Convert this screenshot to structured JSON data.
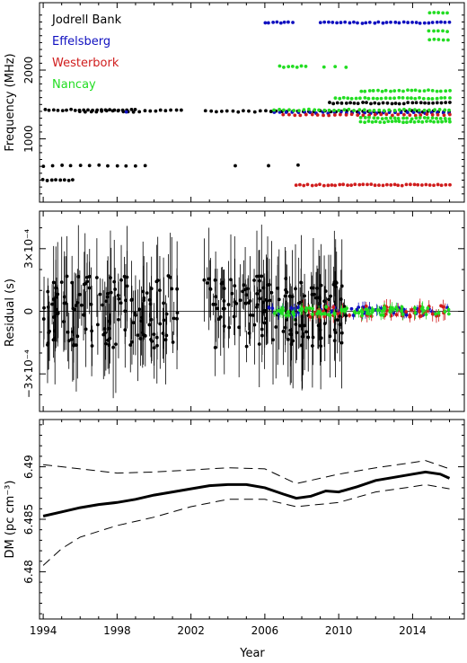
{
  "chart_data": [
    {
      "type": "scatter",
      "ylabel": "Frequency (MHz)",
      "xlim": [
        1993.8,
        2016.8
      ],
      "ylim": [
        80,
        2980
      ],
      "yticks": [
        1000,
        2000
      ],
      "x_ticklabels_shown": false,
      "legend_position": "top-left",
      "series": [
        {
          "name": "Jodrell Bank",
          "color": "#000000",
          "segments": [
            {
              "x": [
                1994.0,
                1995.6
              ],
              "y": 400,
              "n": 8
            },
            {
              "x": [
                1994.0,
                1999.5
              ],
              "y": 610,
              "n": 12
            },
            {
              "x": [
                1994.1,
                1999.0
              ],
              "y": 1420,
              "n": 22
            },
            {
              "x": [
                1996.0,
                1999.2
              ],
              "y": 1400,
              "n": 12
            },
            {
              "x": [
                1999.5,
                2001.5
              ],
              "y": 1410,
              "n": 8
            },
            {
              "x": [
                2002.8,
                2016.0
              ],
              "y": 1400,
              "n": 46
            },
            {
              "x": [
                2009.5,
                2016.0
              ],
              "y": 1520,
              "n": 30
            },
            {
              "x": [
                2004.4,
                2004.4
              ],
              "y": 610,
              "n": 1
            },
            {
              "x": [
                2006.2,
                2006.2
              ],
              "y": 610,
              "n": 1
            },
            {
              "x": [
                2007.8,
                2007.8
              ],
              "y": 610,
              "n": 1
            }
          ]
        },
        {
          "name": "Effelsberg",
          "color": "#1010c0",
          "segments": [
            {
              "x": [
                2006.0,
                2007.5
              ],
              "y": 2690,
              "n": 8
            },
            {
              "x": [
                2009.0,
                2016.0
              ],
              "y": 2690,
              "n": 32
            },
            {
              "x": [
                2006.5,
                2016.0
              ],
              "y": 1380,
              "n": 30
            },
            {
              "x": [
                1998.5,
                1998.5
              ],
              "y": 1400,
              "n": 1
            }
          ]
        },
        {
          "name": "Westerbork",
          "color": "#d01c1c",
          "segments": [
            {
              "x": [
                2007.7,
                2016.0
              ],
              "y": 330,
              "n": 40
            },
            {
              "x": [
                2007.0,
                2016.0
              ],
              "y": 1350,
              "n": 30
            }
          ]
        },
        {
          "name": "Nancay",
          "color": "#22dd22",
          "segments": [
            {
              "x": [
                2006.8,
                2008.2
              ],
              "y": 2050,
              "n": 7
            },
            {
              "x": [
                2009.2,
                2010.4
              ],
              "y": 2050,
              "n": 3
            },
            {
              "x": [
                2009.8,
                2016.0
              ],
              "y": 1590,
              "n": 28
            },
            {
              "x": [
                2011.2,
                2016.0
              ],
              "y": 1700,
              "n": 22
            },
            {
              "x": [
                2011.2,
                2016.0
              ],
              "y": 1250,
              "n": 24
            },
            {
              "x": [
                2011.2,
                2016.0
              ],
              "y": 1300,
              "n": 22
            },
            {
              "x": [
                2006.5,
                2016.0
              ],
              "y": 1420,
              "n": 36
            },
            {
              "x": [
                2014.9,
                2015.9
              ],
              "y": 2830,
              "n": 5
            },
            {
              "x": [
                2014.9,
                2015.9
              ],
              "y": 2570,
              "n": 5
            },
            {
              "x": [
                2014.9,
                2015.9
              ],
              "y": 2440,
              "n": 5
            }
          ]
        }
      ]
    },
    {
      "type": "scatter",
      "ylabel": "Residual (s)",
      "xlim": [
        1993.8,
        2016.8
      ],
      "ylim": [
        -0.00048,
        0.00048
      ],
      "ytick_labels": [
        "3×10⁻⁴",
        "0",
        "−3×10⁻⁴"
      ],
      "yticks": [
        0.0003,
        0,
        -0.0003
      ],
      "x_ticklabels_shown": false,
      "error_bars": true,
      "series": [
        {
          "name": "Jodrell Bank",
          "color": "#000000",
          "x_range": [
            1994.0,
            2010.5
          ],
          "scatter_amplitude": 0.00025,
          "n": 320,
          "gaps": [
            [
              2001.3,
              2002.7
            ]
          ]
        },
        {
          "name": "Effelsberg",
          "color": "#1010c0",
          "x_range": [
            2006.0,
            2016.0
          ],
          "scatter_amplitude": 3e-05,
          "n": 60
        },
        {
          "name": "Westerbork",
          "color": "#d01c1c",
          "x_range": [
            2007.7,
            2016.0
          ],
          "scatter_amplitude": 4e-05,
          "n": 60
        },
        {
          "name": "Nancay",
          "color": "#22dd22",
          "x_range": [
            2006.5,
            2016.0
          ],
          "scatter_amplitude": 3e-05,
          "n": 80
        }
      ]
    },
    {
      "type": "line",
      "ylabel": "DM (pc cm⁻³)",
      "xlabel": "Year",
      "xlim": [
        1993.8,
        2016.8
      ],
      "ylim": [
        6.4755,
        6.4945
      ],
      "yticks": [
        6.48,
        6.485,
        6.49
      ],
      "ytick_labels": [
        "6.48",
        "6.485",
        "6.49"
      ],
      "xticks": [
        1994,
        1998,
        2002,
        2006,
        2010,
        2014
      ],
      "xtick_labels": [
        "1994",
        "1998",
        "2002",
        "2006",
        "2010",
        "2014"
      ],
      "series": [
        {
          "name": "",
          "style": "thick-solid",
          "x": [
            1994.0,
            1995.0,
            1996.0,
            1997.0,
            1998.0,
            1999.0,
            2000.0,
            2001.0,
            2002.0,
            2003.0,
            2004.0,
            2005.0,
            2006.0,
            2007.0,
            2007.7,
            2008.5,
            2009.3,
            2010.0,
            2011.0,
            2012.0,
            2013.0,
            2014.0,
            2014.7,
            2015.5,
            2016.0
          ],
          "y": [
            6.4853,
            6.4857,
            6.4861,
            6.4864,
            6.4866,
            6.4869,
            6.4873,
            6.4876,
            6.4879,
            6.4882,
            6.4883,
            6.4883,
            6.488,
            6.4874,
            6.487,
            6.4872,
            6.4877,
            6.4876,
            6.4881,
            6.4887,
            6.489,
            6.4893,
            6.4895,
            6.4893,
            6.4889
          ]
        },
        {
          "name": "",
          "style": "dashed",
          "x": [
            1994.0,
            1996.0,
            1998.0,
            2000.0,
            2002.0,
            2004.0,
            2006.0,
            2007.7,
            2010.0,
            2012.0,
            2014.0,
            2014.7,
            2016.0
          ],
          "y": [
            6.4902,
            6.4898,
            6.4894,
            6.4895,
            6.4897,
            6.4899,
            6.4898,
            6.4884,
            6.4893,
            6.4899,
            6.4904,
            6.4906,
            6.4898
          ]
        },
        {
          "name": "",
          "style": "dashed",
          "x": [
            1994.0,
            1995.0,
            1996.0,
            1998.0,
            2000.0,
            2002.0,
            2004.0,
            2006.0,
            2007.7,
            2010.0,
            2012.0,
            2014.0,
            2014.7,
            2016.0
          ],
          "y": [
            6.4806,
            6.4822,
            6.4833,
            6.4844,
            6.4852,
            6.4862,
            6.4869,
            6.4869,
            6.4862,
            6.4866,
            6.4876,
            6.4881,
            6.4883,
            6.4879
          ]
        }
      ]
    }
  ],
  "legend": {
    "items": [
      {
        "label": "Jodrell Bank",
        "color": "#000000"
      },
      {
        "label": "Effelsberg",
        "color": "#1010c0"
      },
      {
        "label": "Westerbork",
        "color": "#d01c1c"
      },
      {
        "label": "Nancay",
        "color": "#22dd22"
      }
    ]
  }
}
